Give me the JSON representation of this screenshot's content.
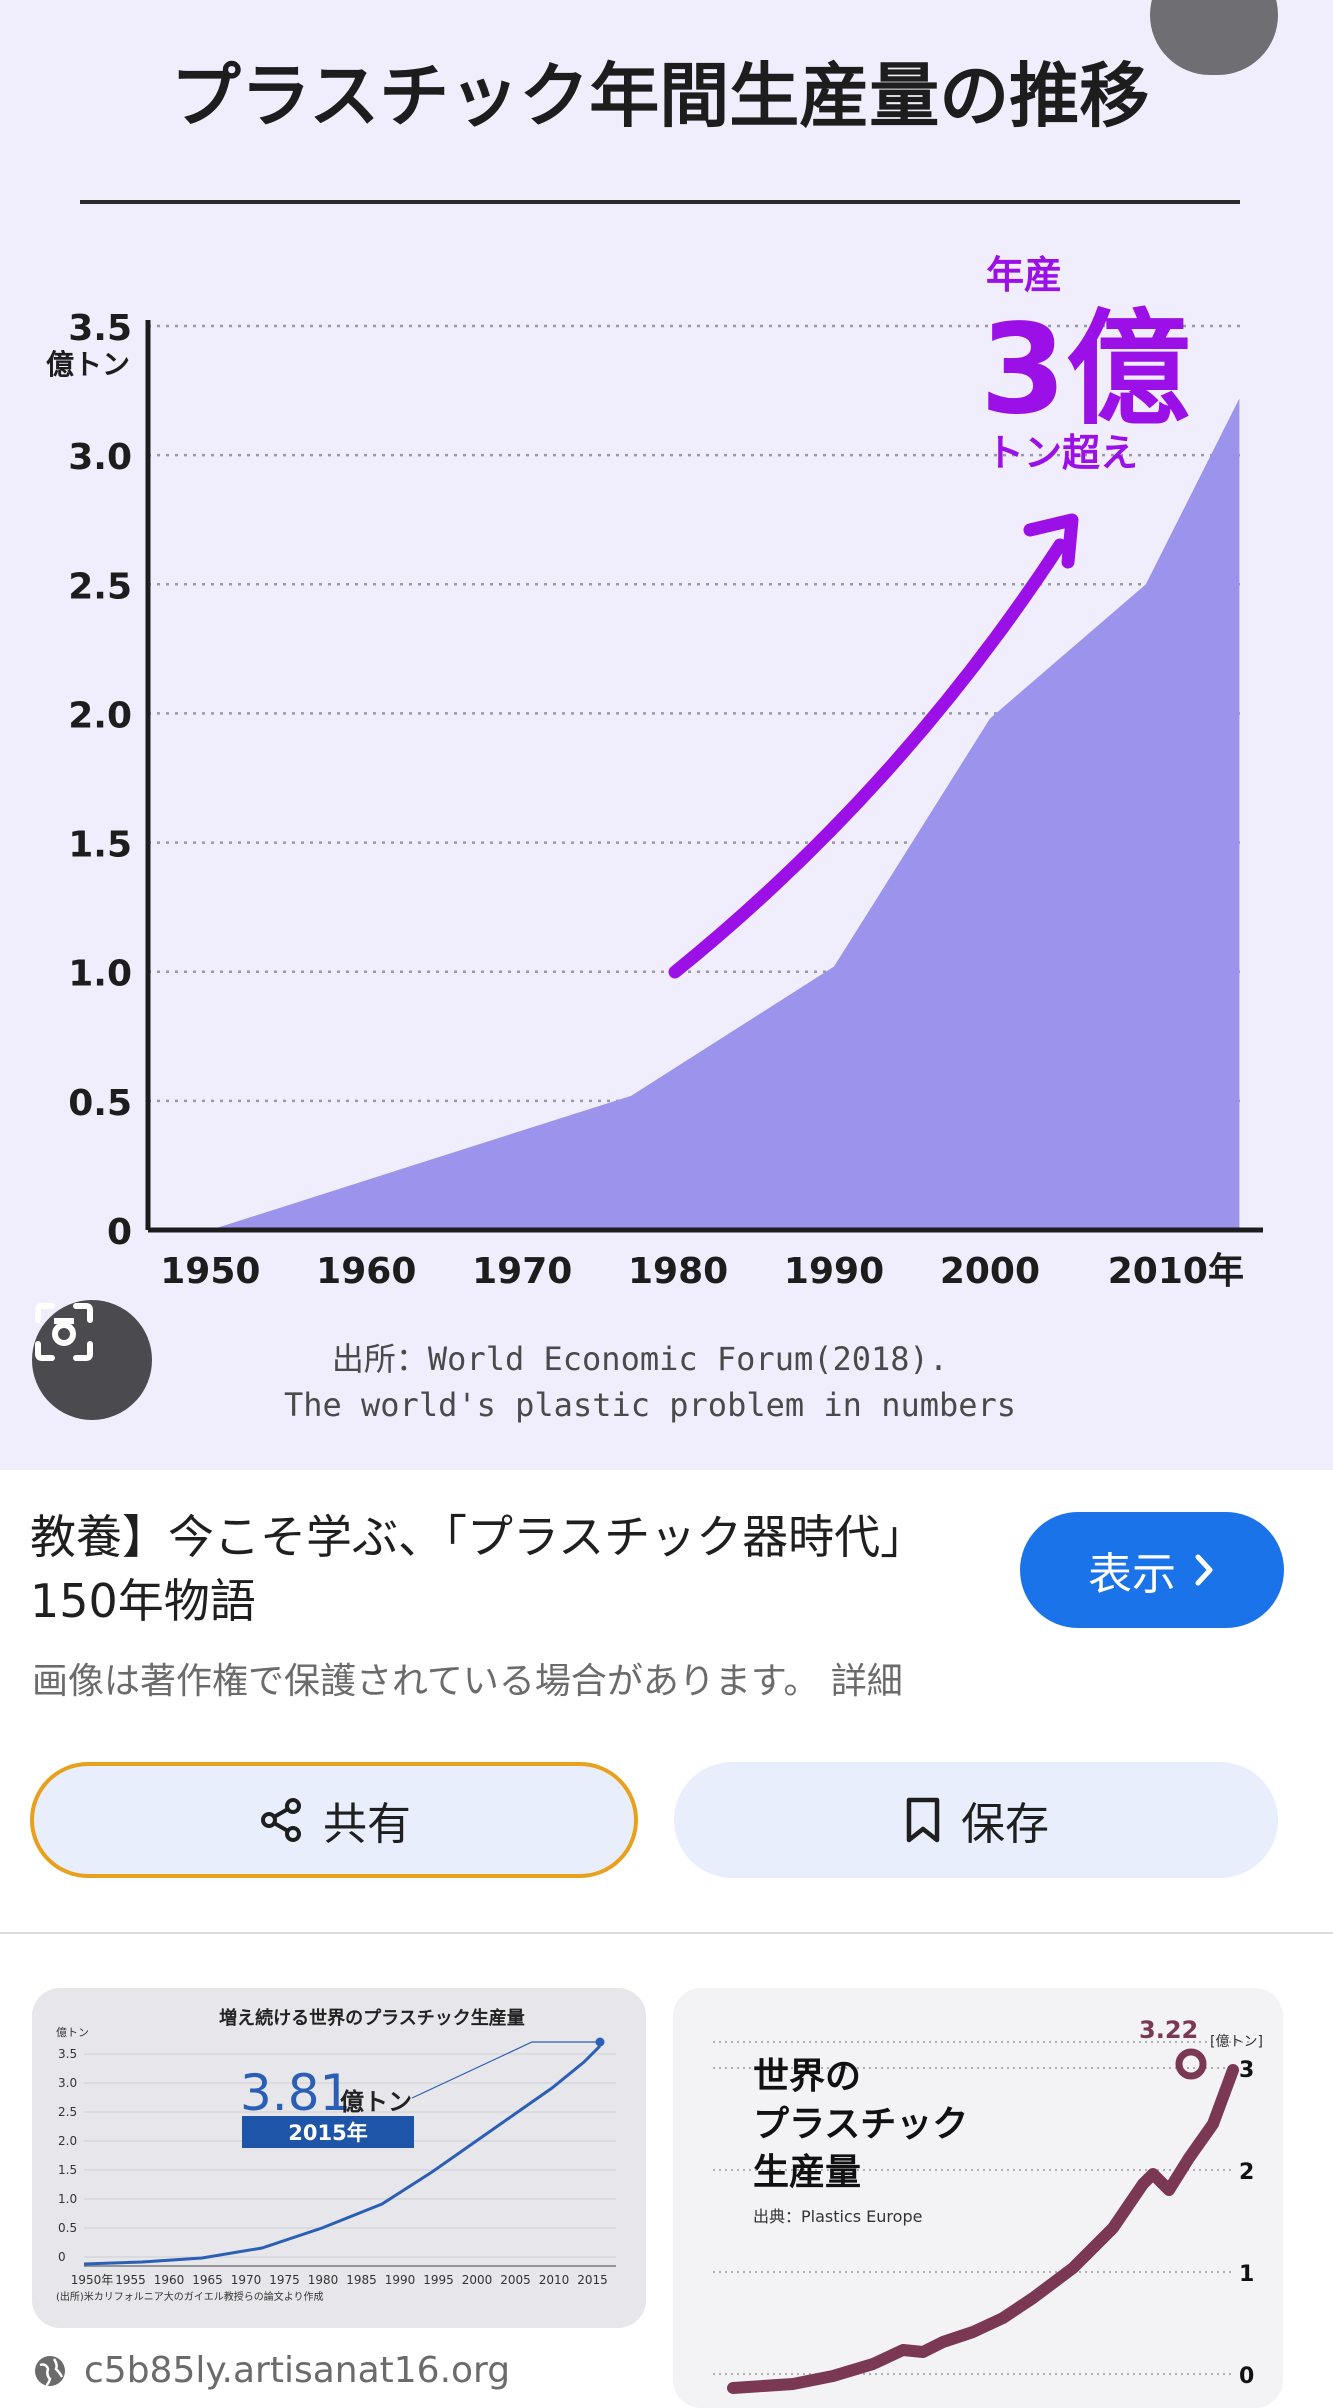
{
  "chart_data": {
    "type": "area",
    "title": "プラスチック年間生産量の推移",
    "ylabel": "億トン",
    "x_tick_labels": [
      "1950",
      "1960",
      "1970",
      "1980",
      "1990",
      "2000",
      "2010年"
    ],
    "y_tick_labels": [
      "0",
      "0.5",
      "1.0",
      "1.5",
      "2.0",
      "2.5",
      "3.0",
      "3.5"
    ],
    "xlim": [
      1946,
      2017
    ],
    "ylim": [
      0,
      3.5
    ],
    "x": [
      1950,
      1977,
      1990,
      2000,
      2010,
      2016
    ],
    "values": [
      0,
      0.52,
      1.02,
      1.98,
      2.5,
      3.22
    ],
    "grid": "horizontal dotted",
    "fill_color": "#9b93ec",
    "annotation": {
      "line1": "年産",
      "big": "3億",
      "line2": "トン超え",
      "color": "#9b10e6"
    },
    "source_line1": "出所：World Economic Forum(2018).",
    "source_line2": "The world's plastic problem in numbers"
  },
  "ui": {
    "caption": "教養】今こそ学ぶ、「プラスチック器時代」150年物語",
    "show_label": "表示",
    "copyright": "画像は著作権で保護されている場合があります。 詳細",
    "share_label": "共有",
    "save_label": "保存",
    "source_domain": "c5b85ly.artisanat16.org",
    "accent": "#1a73e8"
  },
  "related": {
    "left": {
      "title": "増え続ける世界のプラスチック生産量",
      "unit": "億トン",
      "big_value": "3.81",
      "big_unit": "億トン",
      "year_badge": "2015年",
      "y_ticks": [
        "3.5",
        "3.0",
        "2.5",
        "2.0",
        "1.5",
        "1.0",
        "0.5",
        "0"
      ],
      "x_ticks": [
        "1950年",
        "1955",
        "1960",
        "1965",
        "1970",
        "1975",
        "1980",
        "1985",
        "1990",
        "1995",
        "2000",
        "2005",
        "2010",
        "2015"
      ],
      "footnote": "(出所)米カリフォルニア大のガイエル教授らの論文より作成"
    },
    "right": {
      "title_lines": [
        "世界の",
        "プラスチック",
        "生産量"
      ],
      "source": "出典：Plastics Europe",
      "peak_label": "3.22",
      "unit": "[億トン]",
      "y_ticks": [
        "3",
        "2",
        "1",
        "0"
      ]
    }
  }
}
